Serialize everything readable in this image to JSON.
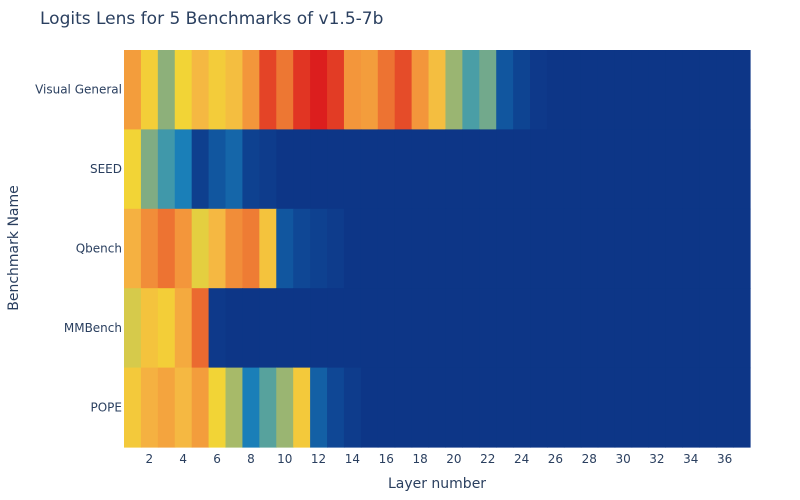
{
  "chart_data": {
    "type": "heatmap",
    "title": "Logits Lens for 5 Benchmarks of v1.5-7b",
    "xlabel": "Layer number",
    "ylabel": "Benchmark Name",
    "x_range": [
      1,
      37
    ],
    "x_ticks": [
      "2",
      "4",
      "6",
      "8",
      "10",
      "12",
      "14",
      "16",
      "18",
      "20",
      "22",
      "24",
      "26",
      "28",
      "30",
      "32",
      "34",
      "36"
    ],
    "rows": [
      "Visual General",
      "SEED",
      "Qbench",
      "MMBench",
      "POPE"
    ],
    "colorscale": [
      [
        0.0,
        "#0d3183"
      ],
      [
        0.1,
        "#0f4c99"
      ],
      [
        0.2,
        "#1a7fb8"
      ],
      [
        0.3,
        "#4a9ea6"
      ],
      [
        0.4,
        "#8db07a"
      ],
      [
        0.5,
        "#cfc850"
      ],
      [
        0.6,
        "#f2d436"
      ],
      [
        0.7,
        "#f5b842"
      ],
      [
        0.8,
        "#f3963b"
      ],
      [
        0.9,
        "#eb6a30"
      ],
      [
        1.0,
        "#dc1e1e"
      ]
    ],
    "z": [
      [
        0.78,
        0.62,
        0.4,
        0.6,
        0.7,
        0.63,
        0.68,
        0.8,
        0.95,
        0.87,
        0.97,
        1.0,
        0.96,
        0.8,
        0.78,
        0.88,
        0.94,
        0.8,
        0.68,
        0.42,
        0.3,
        0.36,
        0.12,
        0.07,
        0.03,
        0.02,
        0.02,
        0.02,
        0.02,
        0.02,
        0.02,
        0.02,
        0.02,
        0.02,
        0.02,
        0.02,
        0.02
      ],
      [
        0.6,
        0.38,
        0.28,
        0.2,
        0.05,
        0.12,
        0.15,
        0.06,
        0.04,
        0.02,
        0.02,
        0.02,
        0.02,
        0.02,
        0.02,
        0.02,
        0.02,
        0.02,
        0.02,
        0.02,
        0.02,
        0.02,
        0.02,
        0.02,
        0.02,
        0.02,
        0.02,
        0.02,
        0.02,
        0.02,
        0.02,
        0.02,
        0.02,
        0.02,
        0.02,
        0.02,
        0.02
      ],
      [
        0.72,
        0.82,
        0.88,
        0.8,
        0.56,
        0.7,
        0.82,
        0.86,
        0.66,
        0.12,
        0.08,
        0.06,
        0.04,
        0.02,
        0.02,
        0.02,
        0.02,
        0.02,
        0.02,
        0.02,
        0.02,
        0.02,
        0.02,
        0.02,
        0.02,
        0.02,
        0.02,
        0.02,
        0.02,
        0.02,
        0.02,
        0.02,
        0.02,
        0.02,
        0.02,
        0.02,
        0.02
      ],
      [
        0.52,
        0.66,
        0.62,
        0.74,
        0.9,
        0.03,
        0.02,
        0.02,
        0.02,
        0.02,
        0.02,
        0.02,
        0.02,
        0.02,
        0.02,
        0.02,
        0.02,
        0.02,
        0.02,
        0.02,
        0.02,
        0.02,
        0.02,
        0.02,
        0.02,
        0.02,
        0.02,
        0.02,
        0.02,
        0.02,
        0.02,
        0.02,
        0.02,
        0.02,
        0.02,
        0.02,
        0.02
      ],
      [
        0.64,
        0.72,
        0.76,
        0.7,
        0.78,
        0.6,
        0.44,
        0.2,
        0.32,
        0.42,
        0.64,
        0.14,
        0.08,
        0.04,
        0.02,
        0.02,
        0.02,
        0.02,
        0.02,
        0.02,
        0.02,
        0.02,
        0.02,
        0.02,
        0.02,
        0.02,
        0.02,
        0.02,
        0.02,
        0.02,
        0.02,
        0.02,
        0.02,
        0.02,
        0.02,
        0.02,
        0.02
      ]
    ]
  }
}
